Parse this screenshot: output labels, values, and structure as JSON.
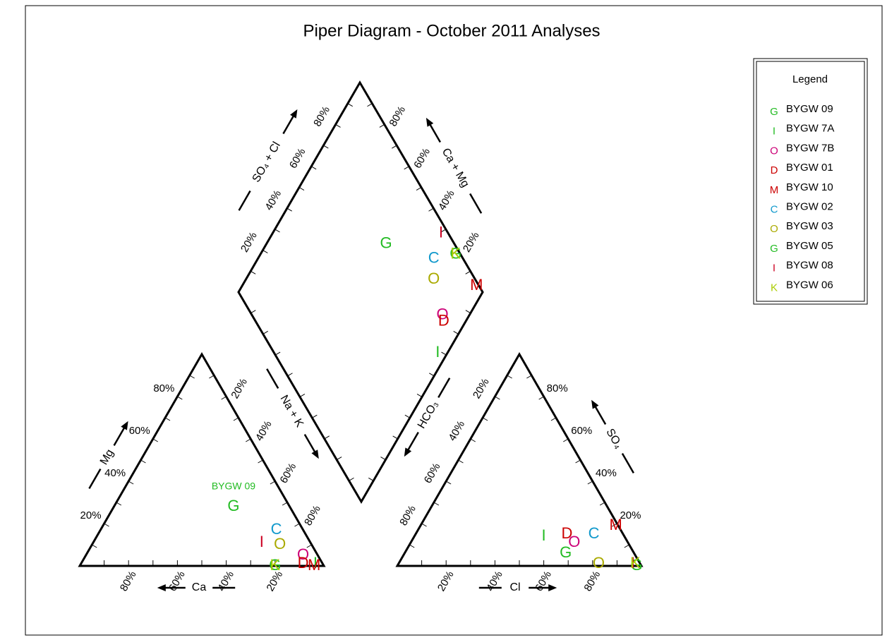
{
  "chart_data": {
    "type": "piper",
    "title": "Piper Diagram - October 2011 Analyses",
    "axes": {
      "ca": "Ca",
      "mg": "Mg",
      "na_k": "Na + K",
      "so4_cl": "SO₄ + Cl",
      "ca_mg": "Ca + Mg",
      "hco3": "HCO₃",
      "cl": "Cl",
      "so4": "SO₄"
    },
    "ticks": [
      {
        "value": 20,
        "label": "20%"
      },
      {
        "value": 40,
        "label": "40%"
      },
      {
        "value": 60,
        "label": "60%"
      },
      {
        "value": 80,
        "label": "80%"
      }
    ],
    "minor_ticks": [
      10,
      30,
      50,
      70,
      90
    ],
    "legend_title": "Legend",
    "legend_position": "upper right",
    "series": [
      {
        "name": "BYGW 09",
        "marker": "G",
        "color": "#22bb22",
        "ca": 23,
        "mg": 28,
        "cl": 66,
        "so4": 6,
        "point_label": true
      },
      {
        "name": "BYGW 7A",
        "marker": "I",
        "color": "#22bb22",
        "ca": 3,
        "mg": 1,
        "cl": 53,
        "so4": 14
      },
      {
        "name": "BYGW 7B",
        "marker": "O",
        "color": "#cc0077",
        "ca": 6,
        "mg": 5,
        "cl": 67,
        "so4": 11
      },
      {
        "name": "BYGW 01",
        "marker": "D",
        "color": "#cc0000",
        "ca": 8,
        "mg": 1,
        "cl": 62,
        "so4": 15
      },
      {
        "name": "BYGW 10",
        "marker": "M",
        "color": "#cc0000",
        "ca": 4,
        "mg": 0,
        "cl": 80,
        "so4": 19
      },
      {
        "name": "BYGW 02",
        "marker": "C",
        "color": "#1199cc",
        "ca": 11,
        "mg": 17,
        "cl": 73,
        "so4": 15
      },
      {
        "name": "BYGW 03",
        "marker": "O",
        "color": "#aaaa00",
        "ca": 13,
        "mg": 10,
        "cl": 82,
        "so4": 1
      },
      {
        "name": "BYGW 05",
        "marker": "G",
        "color": "#22bb22",
        "ca": 20,
        "mg": 0,
        "cl": 98,
        "so4": 0
      },
      {
        "name": "BYGW 08",
        "marker": "I",
        "color": "#cc0022",
        "ca": 20,
        "mg": 11,
        "cl": 96,
        "so4": 1
      },
      {
        "name": "BYGW 06",
        "marker": "K",
        "color": "#aacc00",
        "ca": 20,
        "mg": 0,
        "cl": 97,
        "so4": 1
      }
    ]
  }
}
